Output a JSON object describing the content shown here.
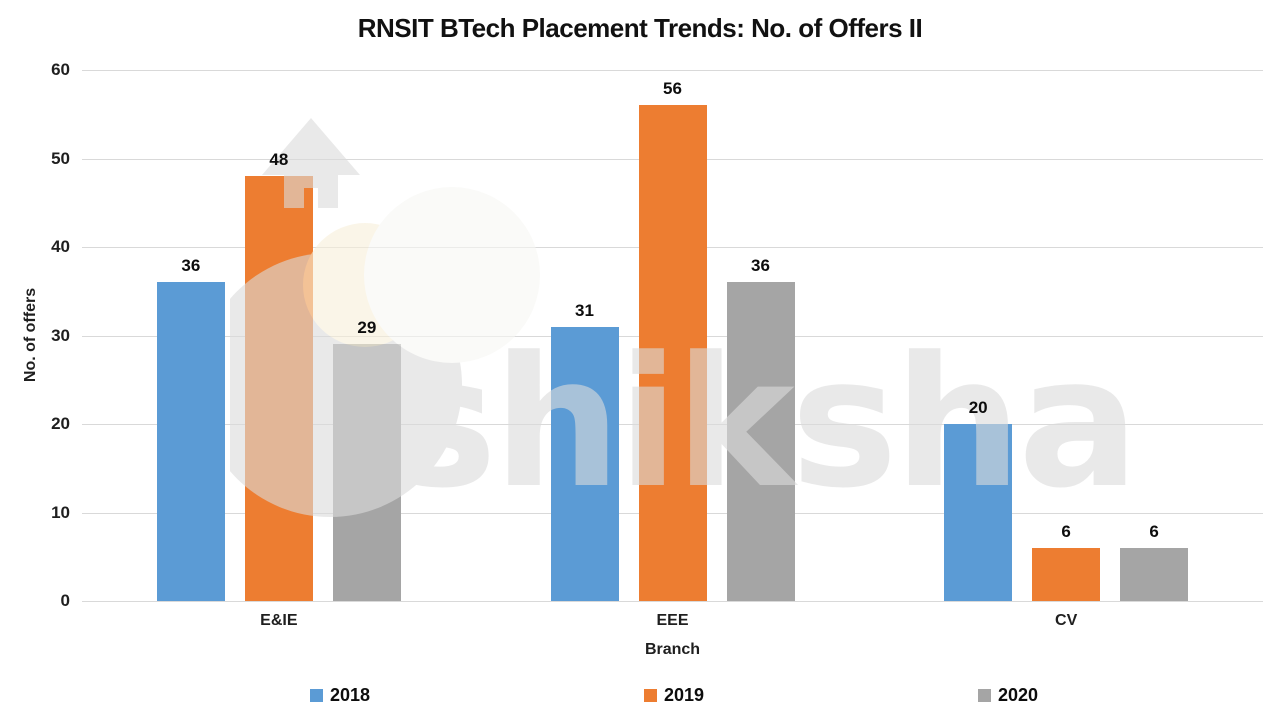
{
  "chart_data": {
    "type": "bar",
    "title": "RNSIT BTech Placement Trends: No. of Offers II",
    "xlabel": "Branch",
    "ylabel": "No. of offers",
    "categories": [
      "E&IE",
      "EEE",
      "CV"
    ],
    "series": [
      {
        "name": "2018",
        "color": "#5B9BD5",
        "values": [
          36,
          31,
          20
        ]
      },
      {
        "name": "2019",
        "color": "#ED7D31",
        "values": [
          48,
          56,
          6
        ]
      },
      {
        "name": "2020",
        "color": "#A5A5A5",
        "values": [
          29,
          36,
          6
        ]
      }
    ],
    "ylim": [
      0,
      60
    ],
    "yticks": [
      0,
      10,
      20,
      30,
      40,
      50,
      60
    ],
    "grid": true,
    "legend_position": "bottom",
    "gridline_color": "#d9d9d9"
  },
  "watermark": {
    "text": "shiksha"
  }
}
